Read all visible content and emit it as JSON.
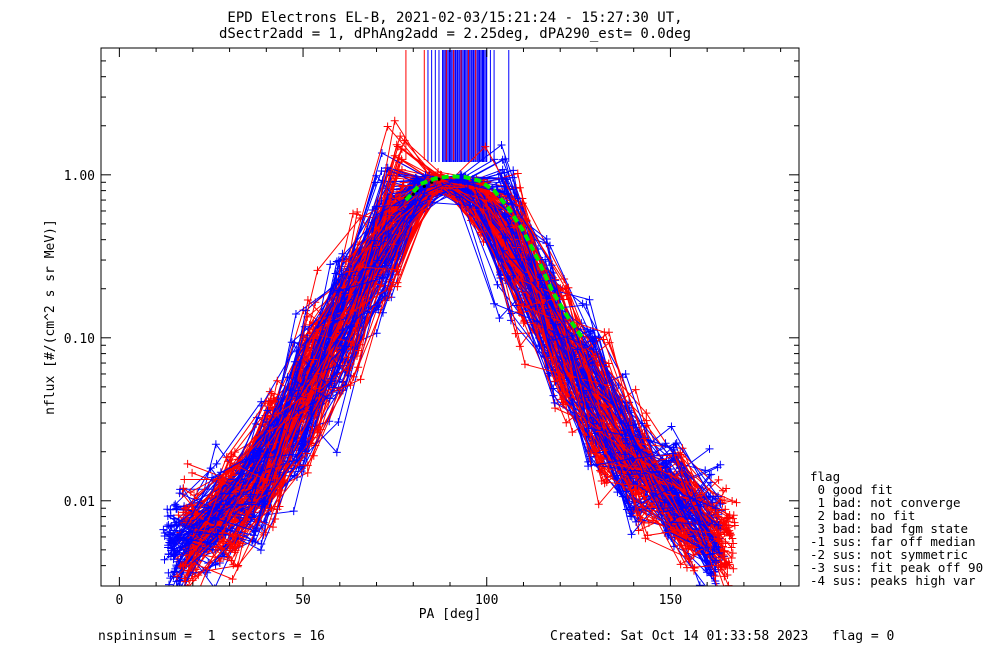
{
  "chart_data": {
    "type": "line",
    "title": "EPD Electrons EL-B, 2021-02-03/15:21:24 - 15:27:30 UT,",
    "subtitle": "dSectr2add = 1, dPhAng2add = 2.25deg, dPA290_est=   0.0deg",
    "xlabel": "PA [deg]",
    "ylabel": "nflux [#/(cm^2 s sr MeV)]",
    "xlim": [
      -5,
      185
    ],
    "ylim": [
      0.003,
      6
    ],
    "yscale": "log",
    "x_ticks": [
      {
        "value": 0,
        "label": "0"
      },
      {
        "value": 50,
        "label": "50"
      },
      {
        "value": 100,
        "label": "100"
      },
      {
        "value": 150,
        "label": "150"
      }
    ],
    "y_ticks": [
      {
        "value": 0.01,
        "label": "0.01"
      },
      {
        "value": 0.1,
        "label": "0.10"
      },
      {
        "value": 1,
        "label": "1.00"
      }
    ],
    "series": [
      {
        "color": "#0000ff",
        "marker": "+",
        "note_pa_start": 13,
        "note_pa_end": 167
      },
      {
        "color": "#ff0000",
        "marker": "+",
        "note_pa_start": 17,
        "note_pa_end": 168
      }
    ],
    "median_fit": {
      "color": "#00ee00",
      "x": [
        78,
        82,
        86,
        90,
        94,
        98,
        102,
        106,
        110,
        114,
        118,
        122,
        126
      ],
      "y": [
        0.7,
        0.88,
        0.95,
        0.98,
        0.97,
        0.92,
        0.8,
        0.62,
        0.45,
        0.3,
        0.19,
        0.135,
        0.1
      ]
    },
    "black_points": {
      "color": "#000000",
      "x": [
        78,
        80,
        81,
        83,
        85,
        87
      ],
      "y": [
        0.72,
        0.76,
        0.8,
        0.85,
        0.9,
        0.94
      ]
    },
    "spin_lines": {
      "x_blue": [
        84,
        85,
        86,
        87,
        88,
        89,
        90,
        91,
        92,
        93,
        94,
        95,
        96,
        97,
        98,
        99,
        100,
        101,
        102,
        106
      ],
      "x_red": [
        78,
        83,
        89,
        91,
        93,
        95,
        97
      ]
    },
    "legend": {
      "position": "right",
      "title": "flag",
      "items": [
        " 0 good fit",
        " 1 bad: not converge",
        " 2 bad: no fit",
        " 3 bad: bad fgm state",
        "-1 sus: far off median",
        "-2 sus: not symmetric",
        "-3 sus: fit peak off 90",
        "-4 sus: peaks high var"
      ]
    }
  },
  "footer": {
    "left": "nspininsum =  1  sectors = 16",
    "right": "Created: Sat Oct 14 01:33:58 2023   flag = 0"
  }
}
